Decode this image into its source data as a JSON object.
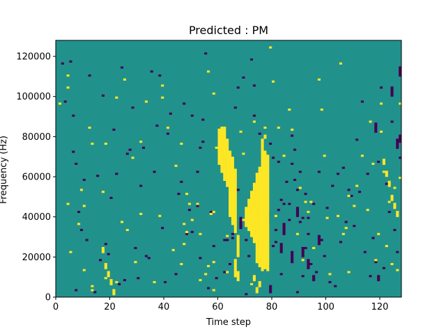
{
  "chart_data": {
    "type": "heatmap",
    "title": "Predicted : PM",
    "xlabel": "Time step",
    "ylabel": "Frequency (Hz)",
    "xlim": [
      0,
      128
    ],
    "ylim": [
      0,
      128000
    ],
    "xticks": [
      0,
      20,
      40,
      60,
      80,
      100,
      120
    ],
    "yticks": [
      0,
      20000,
      40000,
      60000,
      80000,
      100000,
      120000
    ],
    "colormap": {
      "low": "#440154",
      "mid": "#21918c",
      "high": "#fde725"
    },
    "background_value": 0,
    "grid": false,
    "legend": "none",
    "cell_size": {
      "time_steps": 1,
      "hz": 1000
    },
    "high_cells": [
      [
        1,
        96
      ],
      [
        4,
        46
      ],
      [
        4,
        104
      ],
      [
        4,
        110
      ],
      [
        5,
        22
      ],
      [
        8,
        36
      ],
      [
        9,
        53
      ],
      [
        10,
        45
      ],
      [
        10,
        13
      ],
      [
        12,
        84
      ],
      [
        13,
        76
      ],
      [
        13,
        5
      ],
      [
        13,
        3
      ],
      [
        17,
        52
      ],
      [
        18,
        76
      ],
      [
        18,
        9
      ],
      [
        22,
        99
      ],
      [
        22,
        7
      ],
      [
        24,
        37
      ],
      [
        25,
        108
      ],
      [
        26,
        33
      ],
      [
        28,
        69
      ],
      [
        29,
        17
      ],
      [
        31,
        41
      ],
      [
        31,
        77
      ],
      [
        33,
        97
      ],
      [
        36,
        7
      ],
      [
        38,
        40
      ],
      [
        39,
        99
      ],
      [
        39,
        105
      ],
      [
        41,
        84
      ],
      [
        43,
        23
      ],
      [
        44,
        65
      ],
      [
        46,
        76
      ],
      [
        46,
        16
      ],
      [
        47,
        26
      ],
      [
        47,
        36
      ],
      [
        48,
        32
      ],
      [
        48,
        51
      ],
      [
        49,
        46
      ],
      [
        50,
        38
      ],
      [
        52,
        46
      ],
      [
        53,
        31
      ],
      [
        53,
        8
      ],
      [
        55,
        11
      ],
      [
        56,
        112
      ],
      [
        56,
        15
      ],
      [
        57,
        41
      ],
      [
        58,
        101
      ],
      [
        58,
        42
      ],
      [
        58,
        17
      ],
      [
        58,
        3
      ],
      [
        59,
        74
      ],
      [
        63,
        30
      ],
      [
        63,
        12
      ],
      [
        68,
        82
      ],
      [
        69,
        71
      ],
      [
        69,
        38
      ],
      [
        72,
        6
      ],
      [
        73,
        87
      ],
      [
        77,
        84
      ],
      [
        79,
        124
      ],
      [
        80,
        107
      ],
      [
        81,
        40
      ],
      [
        82,
        84
      ],
      [
        84,
        70
      ],
      [
        86,
        93
      ],
      [
        87,
        83
      ],
      [
        89,
        31
      ],
      [
        90,
        54
      ],
      [
        91,
        18
      ],
      [
        92,
        47
      ],
      [
        93,
        42
      ],
      [
        94,
        47
      ],
      [
        95,
        24
      ],
      [
        97,
        108
      ],
      [
        98,
        93
      ],
      [
        99,
        70
      ],
      [
        100,
        39
      ],
      [
        101,
        11
      ],
      [
        104,
        40
      ],
      [
        105,
        116
      ],
      [
        106,
        31
      ],
      [
        107,
        34
      ],
      [
        108,
        50
      ],
      [
        108,
        12
      ],
      [
        110,
        45
      ],
      [
        111,
        55
      ],
      [
        113,
        70
      ],
      [
        115,
        43
      ],
      [
        116,
        87
      ],
      [
        117,
        66
      ],
      [
        118,
        18
      ],
      [
        119,
        31
      ],
      [
        120,
        96
      ],
      [
        120,
        82
      ],
      [
        121,
        62
      ],
      [
        122,
        25
      ],
      [
        123,
        47
      ],
      [
        124,
        16
      ],
      [
        125,
        54
      ],
      [
        126,
        13
      ],
      [
        127,
        59
      ],
      [
        127,
        96
      ]
    ],
    "high_bars": [
      [
        60,
        66,
        83
      ],
      [
        61,
        62,
        84
      ],
      [
        62,
        58,
        84
      ],
      [
        63,
        55,
        78
      ],
      [
        64,
        40,
        72
      ],
      [
        65,
        36,
        69
      ],
      [
        66,
        32,
        63
      ],
      [
        67,
        20,
        30
      ],
      [
        66,
        10,
        18
      ],
      [
        67,
        8,
        12
      ],
      [
        76,
        13,
        78
      ],
      [
        77,
        14,
        72
      ],
      [
        78,
        13,
        70
      ],
      [
        75,
        15,
        64
      ],
      [
        74,
        17,
        61
      ],
      [
        73,
        27,
        56
      ],
      [
        72,
        30,
        52
      ],
      [
        71,
        33,
        48
      ],
      [
        70,
        35,
        44
      ],
      [
        72,
        41,
        45
      ],
      [
        73,
        8,
        10
      ],
      [
        74,
        2,
        4
      ],
      [
        75,
        5,
        7
      ],
      [
        77,
        79,
        80
      ],
      [
        17,
        22,
        24
      ],
      [
        18,
        14,
        16
      ],
      [
        19,
        10,
        12
      ],
      [
        20,
        6,
        8
      ],
      [
        21,
        1,
        3
      ],
      [
        121,
        66,
        68
      ],
      [
        122,
        60,
        62
      ],
      [
        123,
        55,
        57
      ],
      [
        124,
        48,
        50
      ],
      [
        125,
        44,
        46
      ],
      [
        126,
        40,
        42
      ]
    ],
    "low_cells": [
      [
        2,
        116
      ],
      [
        3,
        97
      ],
      [
        5,
        117
      ],
      [
        6,
        72
      ],
      [
        6,
        90
      ],
      [
        7,
        3
      ],
      [
        7,
        66
      ],
      [
        8,
        42
      ],
      [
        9,
        33
      ],
      [
        10,
        58
      ],
      [
        11,
        28
      ],
      [
        12,
        110
      ],
      [
        14,
        2
      ],
      [
        15,
        60
      ],
      [
        16,
        18
      ],
      [
        17,
        100
      ],
      [
        18,
        26
      ],
      [
        19,
        21
      ],
      [
        20,
        49
      ],
      [
        21,
        83
      ],
      [
        22,
        61
      ],
      [
        23,
        6
      ],
      [
        24,
        114
      ],
      [
        25,
        8
      ],
      [
        26,
        71
      ],
      [
        27,
        73
      ],
      [
        28,
        94
      ],
      [
        29,
        24
      ],
      [
        30,
        9
      ],
      [
        31,
        55
      ],
      [
        32,
        74
      ],
      [
        33,
        20
      ],
      [
        34,
        19
      ],
      [
        35,
        112
      ],
      [
        36,
        62
      ],
      [
        37,
        85
      ],
      [
        38,
        110
      ],
      [
        39,
        34
      ],
      [
        40,
        7
      ],
      [
        41,
        81
      ],
      [
        42,
        91
      ],
      [
        44,
        11
      ],
      [
        45,
        51
      ],
      [
        46,
        57
      ],
      [
        47,
        96
      ],
      [
        48,
        31
      ],
      [
        49,
        43
      ],
      [
        50,
        32
      ],
      [
        52,
        45
      ],
      [
        53,
        19
      ],
      [
        54,
        88
      ],
      [
        55,
        121
      ],
      [
        56,
        4
      ],
      [
        57,
        42
      ],
      [
        58,
        25
      ],
      [
        59,
        9
      ],
      [
        61,
        64
      ],
      [
        62,
        12
      ],
      [
        63,
        28
      ],
      [
        64,
        16
      ],
      [
        65,
        29
      ],
      [
        66,
        94
      ],
      [
        67,
        104
      ],
      [
        68,
        39
      ],
      [
        69,
        109
      ],
      [
        70,
        1
      ],
      [
        71,
        20
      ],
      [
        72,
        118
      ],
      [
        73,
        90
      ],
      [
        74,
        41
      ],
      [
        75,
        81
      ],
      [
        76,
        19
      ],
      [
        77,
        57
      ],
      [
        78,
        15
      ],
      [
        79,
        76
      ],
      [
        80,
        69
      ],
      [
        81,
        27
      ],
      [
        82,
        43
      ],
      [
        83,
        11
      ],
      [
        84,
        35
      ],
      [
        85,
        57
      ],
      [
        86,
        46
      ],
      [
        87,
        80
      ],
      [
        88,
        58
      ],
      [
        89,
        2
      ],
      [
        90,
        37
      ],
      [
        91,
        10
      ],
      [
        92,
        51
      ],
      [
        93,
        31
      ],
      [
        94,
        16
      ],
      [
        95,
        46
      ],
      [
        96,
        12
      ],
      [
        97,
        62
      ],
      [
        98,
        28
      ],
      [
        99,
        20
      ],
      [
        100,
        44
      ],
      [
        101,
        7
      ],
      [
        102,
        55
      ],
      [
        103,
        5
      ],
      [
        104,
        61
      ],
      [
        105,
        27
      ],
      [
        106,
        64
      ],
      [
        107,
        37
      ],
      [
        108,
        53
      ],
      [
        109,
        50
      ],
      [
        110,
        35
      ],
      [
        111,
        78
      ],
      [
        112,
        52
      ],
      [
        113,
        97
      ],
      [
        114,
        22
      ],
      [
        115,
        61
      ],
      [
        116,
        10
      ],
      [
        117,
        29
      ],
      [
        118,
        17
      ],
      [
        119,
        67
      ],
      [
        120,
        104
      ],
      [
        121,
        14
      ],
      [
        122,
        56
      ],
      [
        123,
        42
      ],
      [
        124,
        87
      ],
      [
        125,
        33
      ],
      [
        126,
        22
      ],
      [
        127,
        69
      ],
      [
        127,
        80
      ],
      [
        127,
        110
      ],
      [
        50,
        90
      ],
      [
        52,
        62
      ],
      [
        53,
        74
      ],
      [
        54,
        77
      ],
      [
        62,
        28
      ],
      [
        65,
        31
      ],
      [
        67,
        53
      ],
      [
        70,
        28
      ],
      [
        72,
        38
      ],
      [
        73,
        105
      ],
      [
        78,
        40
      ],
      [
        80,
        25
      ],
      [
        81,
        33
      ],
      [
        82,
        67
      ],
      [
        83,
        48
      ],
      [
        84,
        46
      ],
      [
        86,
        38
      ],
      [
        87,
        66
      ],
      [
        88,
        73
      ],
      [
        89,
        53
      ],
      [
        90,
        62
      ],
      [
        91,
        39
      ],
      [
        92,
        24
      ],
      [
        93,
        39
      ]
    ],
    "low_bars": [
      [
        68,
        34,
        38
      ],
      [
        71,
        44,
        46
      ],
      [
        75,
        24,
        28
      ],
      [
        78,
        37,
        42
      ],
      [
        79,
        2,
        5
      ],
      [
        83,
        22,
        26
      ],
      [
        84,
        31,
        36
      ],
      [
        87,
        17,
        22
      ],
      [
        89,
        40,
        44
      ],
      [
        91,
        20,
        24
      ],
      [
        93,
        14,
        18
      ],
      [
        95,
        8,
        10
      ],
      [
        97,
        26,
        30
      ],
      [
        118,
        82,
        86
      ],
      [
        119,
        8,
        10
      ],
      [
        124,
        100,
        104
      ],
      [
        126,
        74,
        78
      ],
      [
        127,
        77,
        80
      ],
      [
        127,
        111,
        114
      ]
    ]
  }
}
